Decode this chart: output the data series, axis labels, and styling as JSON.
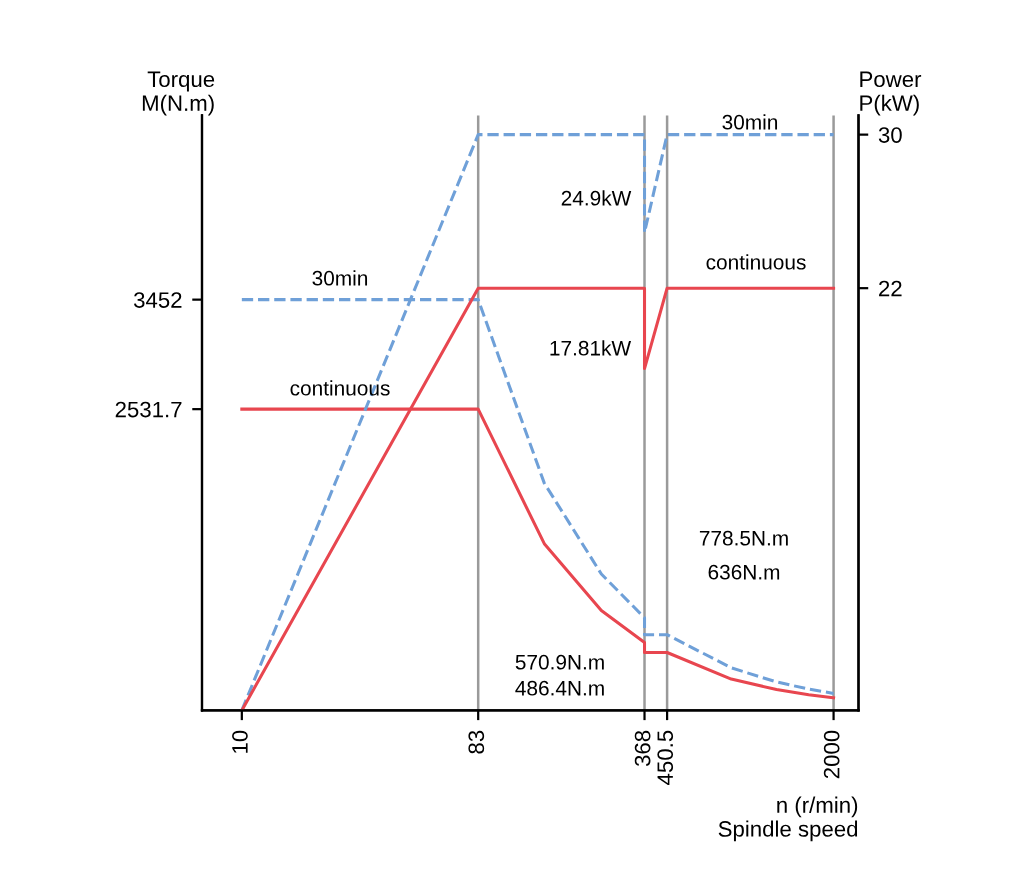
{
  "chart_data": {
    "type": "line",
    "xlabel": "n (r/min)\nSpindle speed",
    "ylabel": "Torque\nM(N.m)",
    "y2label": "Power\nP(kW)",
    "xlim": [
      7,
      2500
    ],
    "log": "x",
    "xticks": [
      10,
      83,
      368,
      450.5,
      2000
    ],
    "ylim": [
      0,
      5000
    ],
    "yticks": [
      2531.7,
      3452
    ],
    "y2lim": [
      0,
      31
    ],
    "y2ticks": [
      22,
      30
    ],
    "grid": false,
    "legend": false,
    "marker": "none",
    "series": [
      {
        "color": "#6fa0d8",
        "line_style": "dashed",
        "x": [
          10,
          83,
          150,
          250,
          368,
          368,
          450.5,
          800,
          1200,
          1600,
          2000
        ],
        "values": [
          3452,
          3452,
          1910,
          1146,
          778.5,
          636,
          636,
          358,
          239,
          179,
          143
        ]
      },
      {
        "color": "#e8464f",
        "line_style": "solid",
        "x": [
          10,
          83,
          150,
          250,
          368,
          368,
          450.5,
          800,
          1200,
          1600,
          2000
        ],
        "values": [
          2531.7,
          2531.7,
          1401,
          840,
          570.9,
          486.4,
          486.4,
          263,
          175,
          131,
          105
        ]
      },
      {
        "color": "#6fa0d8",
        "line_style": "dashed",
        "axis": "y2",
        "x": [
          10,
          83,
          368,
          368,
          450.5,
          2000
        ],
        "values": [
          0,
          30,
          30,
          24.9,
          30,
          30
        ]
      },
      {
        "color": "#e8464f",
        "line_style": "solid",
        "axis": "y2",
        "x": [
          10,
          83,
          368,
          368,
          450.5,
          2000
        ],
        "values": [
          0,
          22,
          22,
          17.81,
          22,
          22
        ]
      }
    ],
    "ref_lines": [
      {
        "axis": "x",
        "value": 83,
        "color": "#9a9a9a"
      },
      {
        "axis": "x",
        "value": 368,
        "color": "#9a9a9a"
      },
      {
        "axis": "x",
        "value": 450.5,
        "color": "#9a9a9a"
      },
      {
        "axis": "x",
        "value": 2000,
        "color": "#9a9a9a"
      }
    ],
    "annotations": [
      "30min",
      "24.9kW",
      "continuous",
      "17.81kW",
      "30min",
      "continuous",
      "778.5N.m",
      "636N.m",
      "570.9N.m",
      "486.4N.m"
    ]
  }
}
